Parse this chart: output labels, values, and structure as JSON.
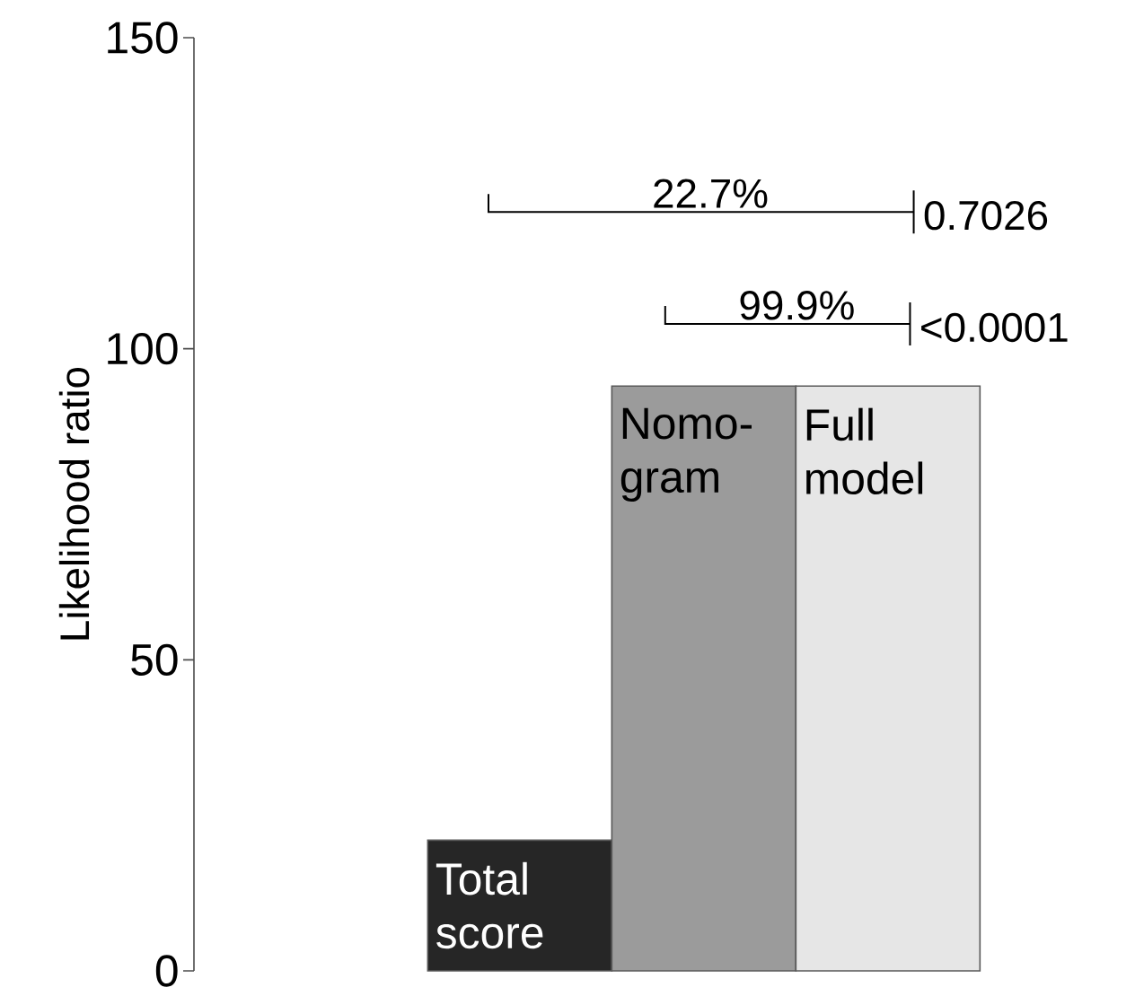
{
  "chart_data": {
    "type": "bar",
    "ylabel": "Likelihood ratio",
    "categories": [
      "Total score",
      "Nomo-gram",
      "Full model"
    ],
    "values": [
      21,
      94,
      94
    ],
    "colors": [
      "#262626",
      "#9b9b9b",
      "#e6e6e6"
    ],
    "ylim": [
      0,
      150
    ],
    "yticks": [
      0,
      50,
      100,
      150
    ],
    "grid": false,
    "annotations": [
      "22.7%",
      "0.7026",
      "99.9%",
      "<0.0001"
    ]
  }
}
